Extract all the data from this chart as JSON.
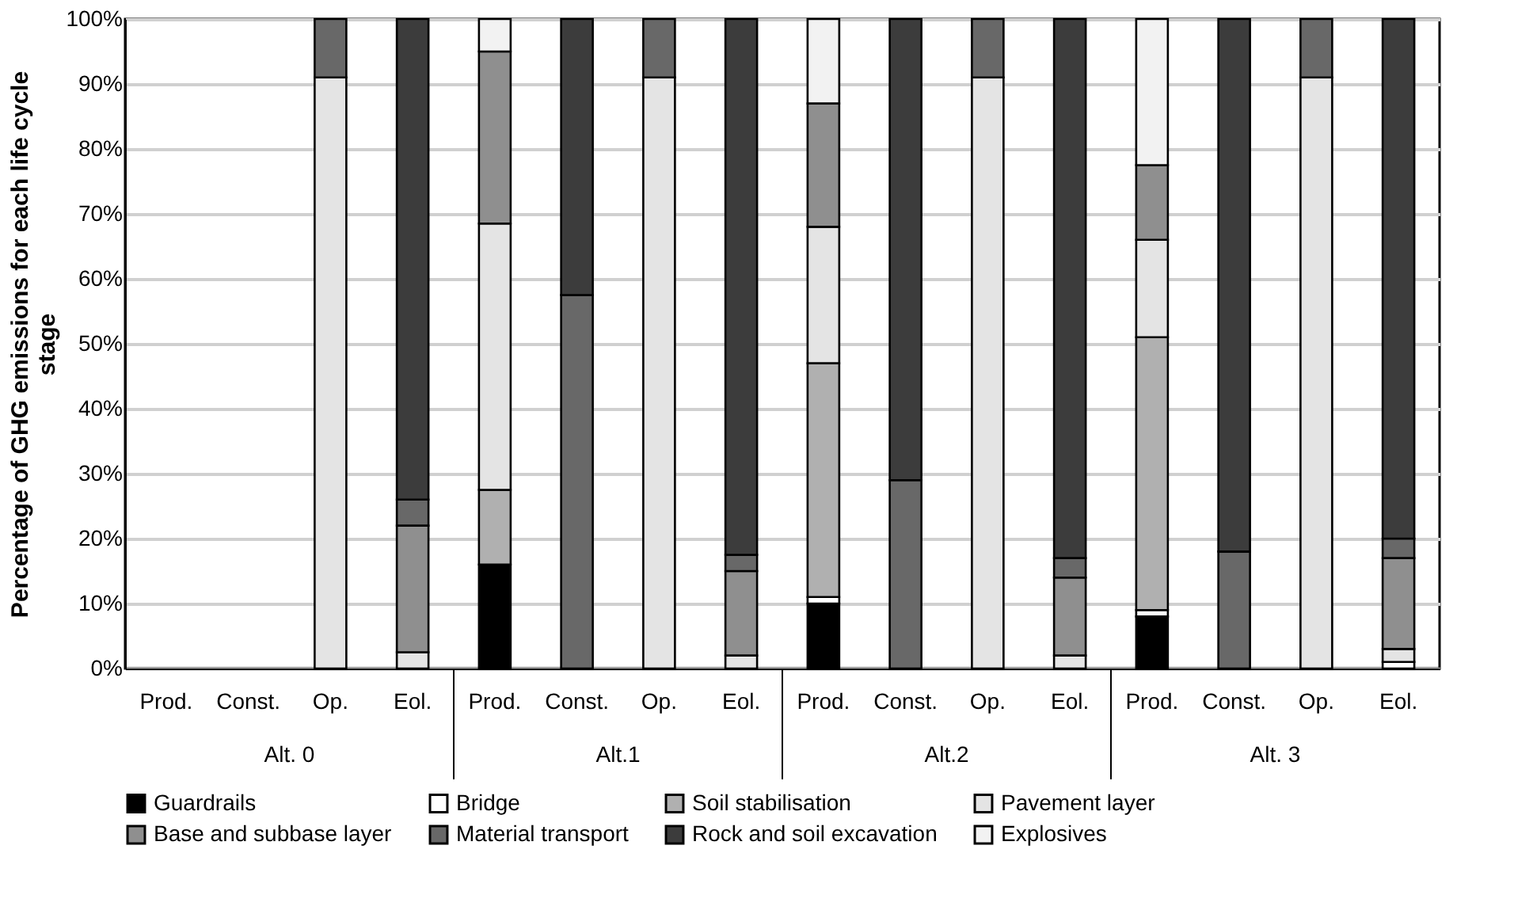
{
  "chart_data": {
    "type": "bar",
    "stacked": true,
    "ylabel": "Percentage of GHG emissions for each life cycle stage",
    "categories": [
      "Prod.",
      "Const.",
      "Op.",
      "Eol.",
      "Prod.",
      "Const.",
      "Op.",
      "Eol.",
      "Prod.",
      "Const.",
      "Op.",
      "Eol.",
      "Prod.",
      "Const.",
      "Op.",
      "Eol."
    ],
    "annotations": [
      "Alt. 0",
      "Alt.1",
      "Alt.2",
      "Alt. 3"
    ],
    "ylim": [
      0,
      100
    ],
    "yticks": [
      {
        "value": 0,
        "label": "0%"
      },
      {
        "value": 10,
        "label": "10%"
      },
      {
        "value": 20,
        "label": "20%"
      },
      {
        "value": 30,
        "label": "30%"
      },
      {
        "value": 40,
        "label": "40%"
      },
      {
        "value": 50,
        "label": "50%"
      },
      {
        "value": 60,
        "label": "60%"
      },
      {
        "value": 70,
        "label": "70%"
      },
      {
        "value": 80,
        "label": "80%"
      },
      {
        "value": 90,
        "label": "90%"
      },
      {
        "value": 100,
        "label": "100%"
      }
    ],
    "grid": "y",
    "legend": "bottom",
    "series": [
      {
        "name": "Guardrails",
        "color": "#000000",
        "values": [
          null,
          null,
          null,
          null,
          16,
          null,
          null,
          null,
          10,
          null,
          null,
          null,
          8,
          null,
          null,
          null
        ]
      },
      {
        "name": "Bridge",
        "color": "#ffffff",
        "values": [
          null,
          null,
          null,
          null,
          null,
          null,
          null,
          null,
          1,
          null,
          null,
          null,
          1,
          null,
          null,
          1
        ]
      },
      {
        "name": "Soil stabilisation",
        "color": "#b0b0b0",
        "values": [
          null,
          null,
          null,
          null,
          11.5,
          null,
          null,
          null,
          36,
          null,
          null,
          null,
          42,
          null,
          null,
          null
        ]
      },
      {
        "name": "Pavement layer",
        "color": "#e4e4e4",
        "values": [
          null,
          null,
          91,
          2.5,
          41,
          null,
          91,
          2,
          21,
          null,
          91,
          2,
          15,
          null,
          91,
          2
        ]
      },
      {
        "name": "Base and subbase layer",
        "color": "#8f8f8f",
        "values": [
          null,
          null,
          null,
          19.5,
          26.5,
          null,
          null,
          13,
          19,
          null,
          null,
          12,
          11.5,
          null,
          null,
          14
        ]
      },
      {
        "name": "Material transport",
        "color": "#686868",
        "values": [
          null,
          null,
          9,
          4,
          null,
          57.5,
          9,
          2.5,
          null,
          29,
          9,
          3,
          null,
          18,
          9,
          3
        ]
      },
      {
        "name": "Rock and soil excavation",
        "color": "#3c3c3c",
        "values": [
          null,
          null,
          null,
          74,
          null,
          42.5,
          null,
          82.5,
          null,
          71,
          null,
          83,
          null,
          82,
          null,
          80
        ]
      },
      {
        "name": "Explosives",
        "color": "#f2f2f2",
        "values": [
          null,
          null,
          null,
          null,
          5,
          null,
          null,
          null,
          13,
          null,
          null,
          null,
          22.5,
          null,
          null,
          null
        ]
      }
    ]
  }
}
